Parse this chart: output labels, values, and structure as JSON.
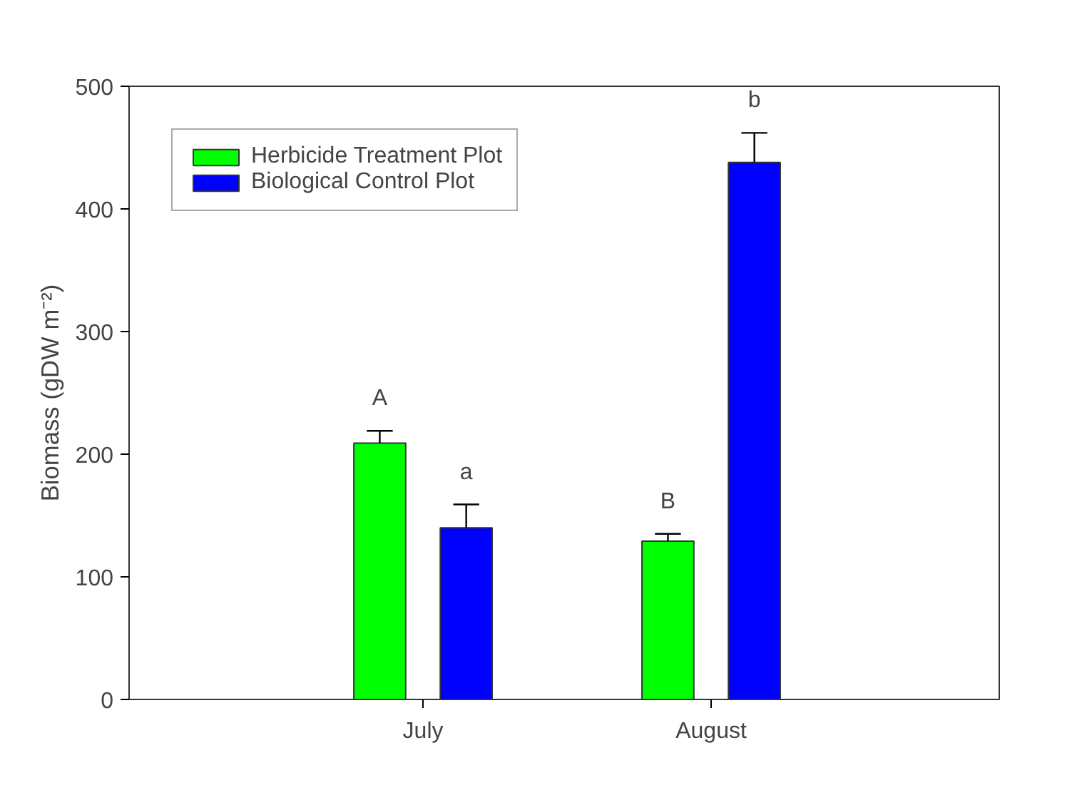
{
  "chart_data": {
    "type": "bar",
    "ylabel": "Biomass (gDW m⁻²)",
    "categories": [
      "July",
      "August"
    ],
    "series": [
      {
        "name": "Herbicide Treatment Plot",
        "color": "#00ff00",
        "values": [
          209,
          129
        ],
        "errors": [
          [
            209,
            219
          ],
          [
            129,
            135
          ]
        ]
      },
      {
        "name": "Biological Control Plot",
        "color": "#0000ff",
        "values": [
          140,
          438
        ],
        "errors": [
          [
            140,
            159
          ],
          [
            438,
            462
          ]
        ]
      }
    ],
    "annotations": [
      "A",
      "a",
      "B",
      "b"
    ],
    "ylim": [
      0,
      500
    ],
    "yticks": [
      0,
      100,
      200,
      300,
      400,
      500
    ],
    "grid": false,
    "legend": "top left"
  }
}
